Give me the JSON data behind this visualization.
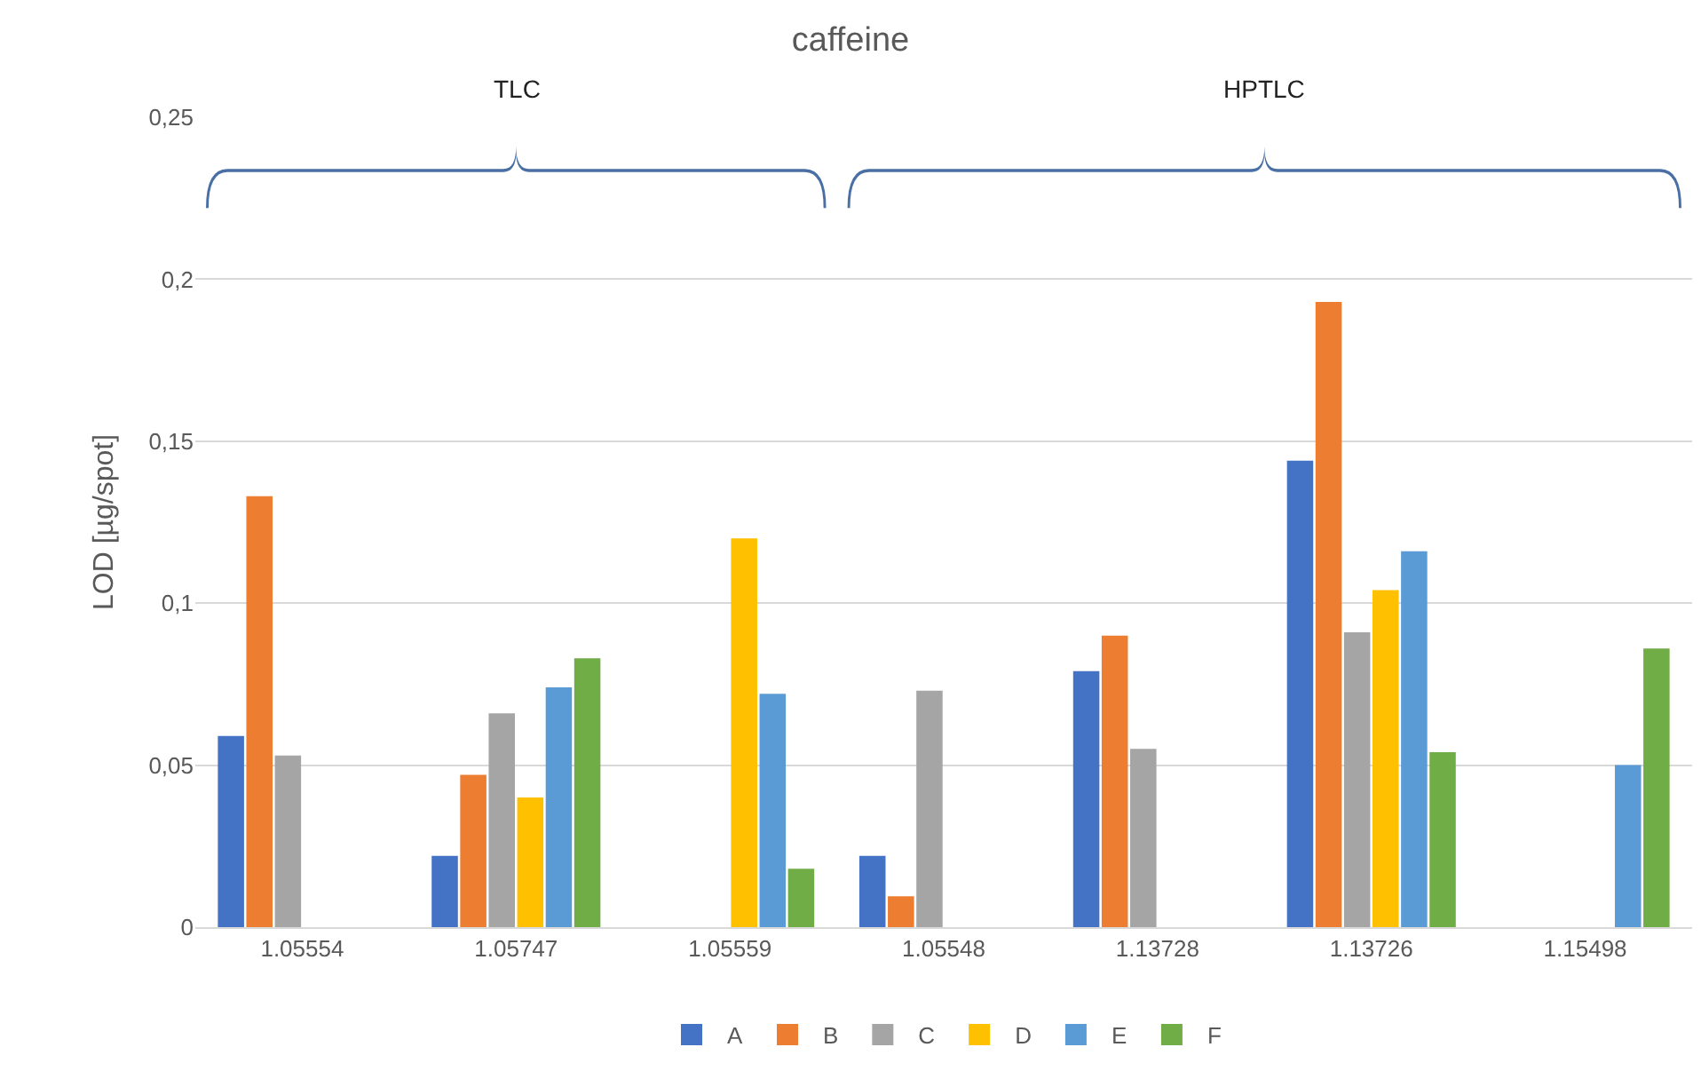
{
  "chart_data": {
    "type": "bar",
    "title": "caffeine",
    "ylabel": "LOD [µg/spot]",
    "categories": [
      "1.05554",
      "1.05747",
      "1.05559",
      "1.05548",
      "1.13728",
      "1.13726",
      "1.15498"
    ],
    "series": [
      {
        "name": "A",
        "color": "#4472c4",
        "values": [
          0.059,
          0.022,
          null,
          0.022,
          0.079,
          0.144,
          null
        ]
      },
      {
        "name": "B",
        "color": "#ed7d31",
        "values": [
          0.133,
          0.047,
          null,
          0.0095,
          0.09,
          0.193,
          null
        ]
      },
      {
        "name": "C",
        "color": "#a5a5a5",
        "values": [
          0.053,
          0.066,
          null,
          0.073,
          0.055,
          0.091,
          null
        ]
      },
      {
        "name": "D",
        "color": "#ffc000",
        "values": [
          null,
          0.04,
          0.12,
          null,
          null,
          0.104,
          null
        ]
      },
      {
        "name": "E",
        "color": "#5b9bd5",
        "values": [
          null,
          0.074,
          0.072,
          null,
          null,
          0.116,
          0.05
        ]
      },
      {
        "name": "F",
        "color": "#70ad47",
        "values": [
          null,
          0.083,
          0.018,
          null,
          null,
          0.054,
          0.086
        ]
      }
    ],
    "annotations": [
      "TLC",
      "HPTLC"
    ],
    "ylim": [
      0,
      0.25
    ],
    "yticks": [
      {
        "value": 0,
        "label": "0"
      },
      {
        "value": 0.05,
        "label": "0,05"
      },
      {
        "value": 0.1,
        "label": "0,1"
      },
      {
        "value": 0.15,
        "label": "0,15"
      },
      {
        "value": 0.2,
        "label": "0,2"
      },
      {
        "value": 0.25,
        "label": "0,25"
      }
    ],
    "grid": "y",
    "legend": "bottom"
  }
}
